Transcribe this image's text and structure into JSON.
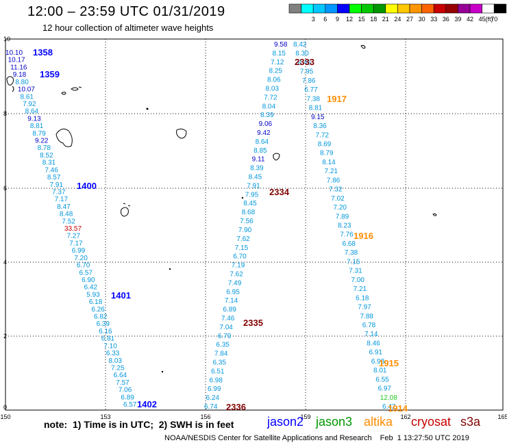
{
  "header": {
    "title": "12:00 – 23:59 UTC 01/31/2019",
    "subtitle": "12 hour collection of altimeter wave heights"
  },
  "color_scale": {
    "unit": "(ft)",
    "bins": [
      {
        "label": "",
        "color": "#808080"
      },
      {
        "label": "3",
        "color": "#00ffff"
      },
      {
        "label": "6",
        "color": "#00c8ff"
      },
      {
        "label": "9",
        "color": "#0096ff"
      },
      {
        "label": "12",
        "color": "#0000ff"
      },
      {
        "label": "15",
        "color": "#00ff00"
      },
      {
        "label": "18",
        "color": "#00c800"
      },
      {
        "label": "21",
        "color": "#009600"
      },
      {
        "label": "24",
        "color": "#ffff00"
      },
      {
        "label": "27",
        "color": "#ffc800"
      },
      {
        "label": "30",
        "color": "#ff9600"
      },
      {
        "label": "33",
        "color": "#ff6400"
      },
      {
        "label": "36",
        "color": "#c80000"
      },
      {
        "label": "39",
        "color": "#960000"
      },
      {
        "label": "42",
        "color": "#960096"
      },
      {
        "label": "45",
        "color": "#c800c8"
      },
      {
        "label": "70",
        "color": "#ffffff"
      },
      {
        "label": "",
        "color": "#000000"
      }
    ]
  },
  "map": {
    "lon_ticks": [
      "150",
      "153",
      "156",
      "159",
      "162",
      "165"
    ],
    "lat_ticks": [
      "0",
      "2",
      "4",
      "6",
      "8",
      "10"
    ]
  },
  "passes": [
    {
      "time": "1358",
      "color": "#0000ff"
    },
    {
      "time": "1359",
      "color": "#0000ff"
    },
    {
      "time": "1400",
      "color": "#0000ff"
    },
    {
      "time": "1401",
      "color": "#0000ff"
    },
    {
      "time": "1402",
      "color": "#0000ff"
    },
    {
      "time": "2333",
      "color": "#800000"
    },
    {
      "time": "2334",
      "color": "#800000"
    },
    {
      "time": "2335",
      "color": "#800000"
    },
    {
      "time": "2336",
      "color": "#800000"
    },
    {
      "time": "1917",
      "color": "#ff8c00"
    },
    {
      "time": "1916",
      "color": "#ff8c00"
    },
    {
      "time": "1915",
      "color": "#ff8c00"
    },
    {
      "time": "1914",
      "color": "#ff8c00"
    }
  ],
  "tracks": {
    "jason2": [
      "10.10",
      "10.17",
      "11.16",
      "9.18",
      "8.80",
      "10.07",
      "8.61",
      "7.92",
      "8.64",
      "9.13",
      "8.81",
      "8.79",
      "9.22",
      "8.78",
      "8.52",
      "8.31",
      "7.46",
      "8.57",
      "7.91",
      "7.37",
      "7.17",
      "8.47",
      "8.48",
      "7.52",
      "33.57",
      "7.27",
      "7.17",
      "6.99",
      "7.20",
      "6.70",
      "6.57",
      "6.90",
      "6.42",
      "5.93",
      "6.18",
      "6.26",
      "6.82",
      "6.39",
      "6.16",
      "6.81",
      "7.10",
      "6.33",
      "8.03",
      "7.25",
      "6.64",
      "7.57",
      "7.06",
      "6.89",
      "6.57"
    ],
    "altika_1": [
      "9.58",
      "8.42",
      "8.15",
      "8.30",
      "7.12",
      "8.45",
      "8.25",
      "7.95",
      "8.06",
      "7.86",
      "8.03",
      "6.77",
      "7.72",
      "7.38",
      "8.04",
      "8.81",
      "8.39",
      "9.15",
      "9.06",
      "8.36",
      "9.42",
      "7.72",
      "8.64",
      "8.69",
      "8.85",
      "8.79",
      "9.11",
      "8.14",
      "8.39",
      "7.21",
      "8.45",
      "7.86",
      "7.91",
      "7.32",
      "7.95",
      "7.02",
      "8.45",
      "7.20",
      "8.68",
      "7.89",
      "7.56",
      "8.23",
      "7.90",
      "7.76",
      "7.62",
      "6.68",
      "7.15",
      "7.38",
      "6.70",
      "7.15",
      "7.19",
      "7.31",
      "7.62",
      "7.00",
      "7.49",
      "7.21",
      "6.95",
      "6.18",
      "7.14",
      "7.97",
      "6.89",
      "7.88",
      "7.46",
      "6.78",
      "7.04",
      "7.14",
      "6.79",
      "8.46",
      "6.35",
      "6.91",
      "7.84",
      "6.93",
      "6.35",
      "8.01",
      "6.51",
      "6.55",
      "6.98",
      "6.97",
      "6.99",
      "12.08",
      "6.24",
      "6.42",
      "6.74"
    ]
  },
  "legend": {
    "note": "note:  1) Time is in UTC;  2) SWH is in feet",
    "satellites": [
      {
        "name": "jason2",
        "color": "#0000ff"
      },
      {
        "name": "jason3",
        "color": "#009600"
      },
      {
        "name": "altika",
        "color": "#ff8c00"
      },
      {
        "name": "cryosat",
        "color": "#c80000"
      },
      {
        "name": "s3a",
        "color": "#800000"
      }
    ]
  },
  "footer": {
    "agency": "NOAA/NESDIS Center for Satellite Applications and Research",
    "timestamp": "Feb  1 13:27:50 UTC 2019"
  }
}
